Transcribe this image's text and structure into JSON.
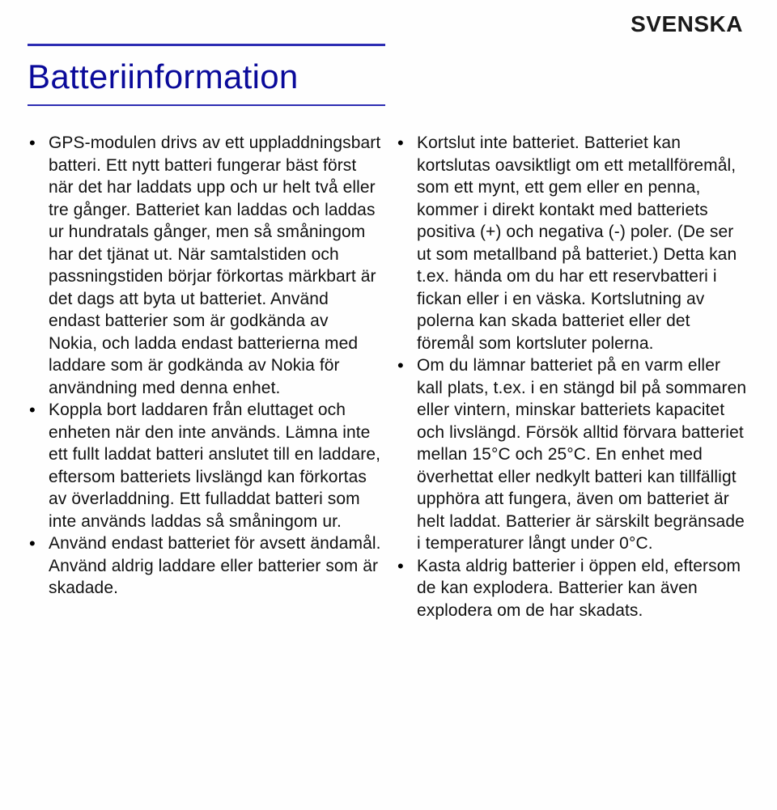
{
  "lang_label": "SVENSKA",
  "title": "Batteriinformation",
  "left_column": {
    "items": [
      "GPS-modulen drivs av ett uppladdningsbart batteri. Ett nytt batteri fungerar bäst först när det har laddats upp och ur helt två eller tre gånger. Batteriet kan laddas och laddas ur hundratals gånger, men så småningom har det tjänat ut. När samtalstiden och passningstiden börjar förkortas märkbart är det dags att byta ut batteriet. Använd endast batterier som är godkända av Nokia, och ladda endast batterierna med laddare som är godkända av Nokia för användning med denna enhet.",
      "Koppla bort laddaren från eluttaget och enheten när den inte används. Lämna inte ett fullt laddat batteri anslutet till en laddare, eftersom batteriets livslängd kan förkortas av överladdning. Ett fulladdat batteri som inte används laddas så småningom ur.",
      "Använd endast batteriet för avsett ändamål. Använd aldrig laddare eller batterier som är skadade."
    ]
  },
  "right_column": {
    "items": [
      "Kortslut inte batteriet. Batteriet kan kortslutas oavsiktligt om ett metallföremål, som ett mynt, ett gem eller en penna, kommer i direkt kontakt med batteriets positiva (+) och negativa (-) poler. (De ser ut som metallband på batteriet.) Detta kan t.ex. hända om du har ett reservbatteri i fickan eller i en väska. Kortslutning av polerna kan skada batteriet eller det föremål som kortsluter polerna.",
      "Om du lämnar batteriet på en varm eller kall plats, t.ex. i en stängd bil på sommaren eller vintern, minskar batteriets kapacitet och livslängd. Försök alltid förvara batteriet mellan 15°C och 25°C. En enhet med överhettat eller nedkylt batteri kan tillfälligt upphöra att fungera, även om batteriet är helt laddat. Batterier är särskilt begränsade i temperaturer långt under 0°C.",
      "Kasta aldrig batterier i öppen eld, eftersom de kan explodera. Batterier kan även explodera om de har skadats."
    ]
  }
}
